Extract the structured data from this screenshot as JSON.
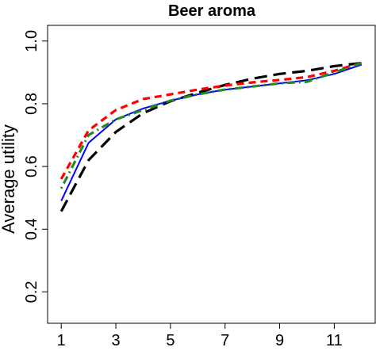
{
  "chart_data": {
    "type": "line",
    "title": "Beer aroma",
    "xlabel": "",
    "ylabel": "Average utility",
    "x": [
      1,
      2,
      3,
      4,
      5,
      6,
      7,
      8,
      9,
      10,
      11,
      12
    ],
    "x_ticks": [
      "1",
      "3",
      "5",
      "7",
      "9",
      "11"
    ],
    "y_ticks": [
      "0.2",
      "0.4",
      "0.6",
      "0.8",
      "1.0"
    ],
    "xlim": [
      0.5,
      12.5
    ],
    "ylim": [
      0.1,
      1.05
    ],
    "grid": false,
    "series": [
      {
        "color": "#000000",
        "dash": "long-dash",
        "values": [
          0.457,
          0.62,
          0.71,
          0.77,
          0.808,
          0.835,
          0.86,
          0.88,
          0.895,
          0.905,
          0.92,
          0.93
        ]
      },
      {
        "color": "#0000ff",
        "dash": "solid",
        "values": [
          0.49,
          0.675,
          0.75,
          0.785,
          0.81,
          0.83,
          0.845,
          0.855,
          0.865,
          0.875,
          0.895,
          0.925
        ]
      },
      {
        "color": "#ff0000",
        "dash": "dashed",
        "values": [
          0.56,
          0.715,
          0.78,
          0.815,
          0.83,
          0.845,
          0.858,
          0.868,
          0.876,
          0.885,
          0.905,
          0.93
        ]
      },
      {
        "color": "#228b22",
        "dash": "dot-dash",
        "values": [
          0.53,
          0.7,
          0.75,
          0.78,
          0.81,
          0.83,
          0.845,
          0.855,
          0.865,
          0.87,
          0.9,
          0.93
        ]
      }
    ]
  }
}
